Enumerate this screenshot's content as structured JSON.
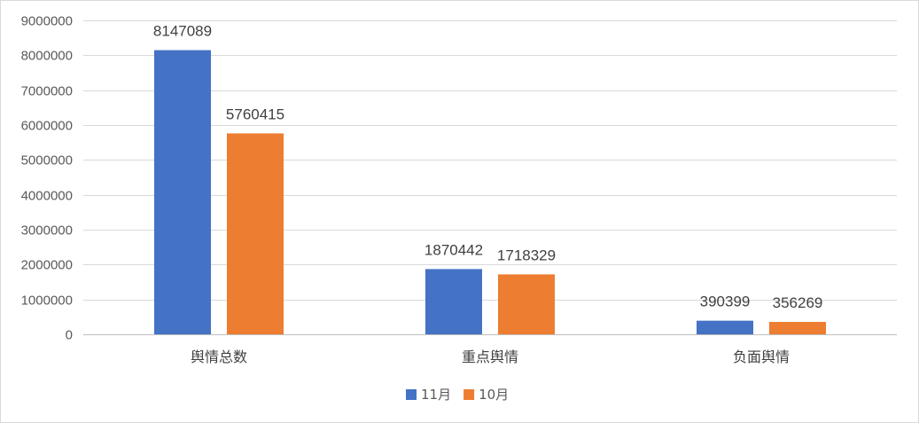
{
  "chart_data": {
    "type": "bar",
    "categories": [
      "舆情总数",
      "重点舆情",
      "负面舆情"
    ],
    "series": [
      {
        "name": "11月",
        "color": "#4472c4",
        "values": [
          8147089,
          1870442,
          390399
        ]
      },
      {
        "name": "10月",
        "color": "#ed7d31",
        "values": [
          5760415,
          1718329,
          356269
        ]
      }
    ],
    "ylim": [
      0,
      9000000
    ],
    "yticks": [
      0,
      1000000,
      2000000,
      3000000,
      4000000,
      5000000,
      6000000,
      7000000,
      8000000,
      9000000
    ],
    "grid": true,
    "legend": "bottom-center",
    "data_labels": true
  }
}
